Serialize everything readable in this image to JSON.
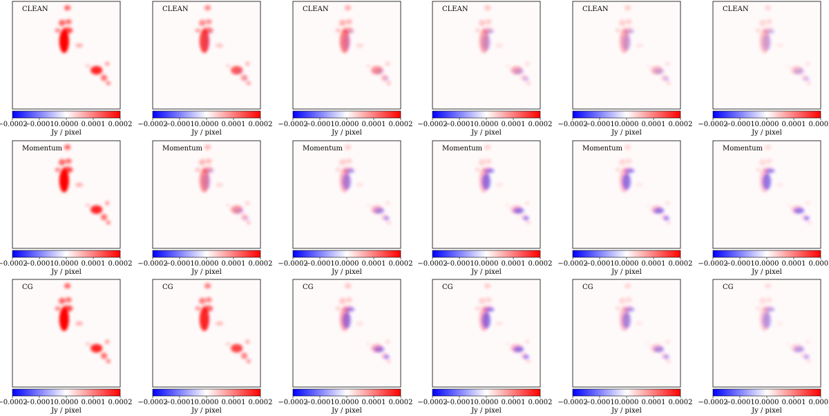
{
  "figure": {
    "colormap": {
      "low": "#0000ff",
      "mid": "#ffffff",
      "high": "#ff0000"
    },
    "colorbar": {
      "ticks": [
        "−0.0002",
        "−0.0001",
        "0.0000",
        "0.0001",
        "0.0002"
      ],
      "label": "Jy / pixel",
      "range": [
        -0.0002,
        0.0002
      ]
    },
    "rows": [
      {
        "method": "CLEAN"
      },
      {
        "method": "Momentum"
      },
      {
        "method": "CG"
      }
    ],
    "columns": 6
  },
  "chart_data": {
    "type": "heatmap",
    "layout": "3 rows x 6 columns of image panels",
    "row_labels": [
      "CLEAN",
      "Momentum",
      "CG"
    ],
    "value_range": [
      -0.0002,
      0.0002
    ],
    "colorbar_label": "Jy / pixel",
    "colorbar_ticks": [
      -0.0002,
      -0.0001,
      0.0,
      0.0001,
      0.0002
    ],
    "grid": false,
    "panel_intensity": [
      [
        1.0,
        0.75,
        0.5,
        0.35,
        0.3,
        0.25
      ],
      [
        1.0,
        0.45,
        0.3,
        0.28,
        0.25,
        0.22
      ],
      [
        1.0,
        0.85,
        0.35,
        0.3,
        0.25,
        0.2
      ]
    ],
    "panel_negative_fraction": [
      [
        0.0,
        0.05,
        0.12,
        0.2,
        0.2,
        0.2
      ],
      [
        0.0,
        0.15,
        0.35,
        0.45,
        0.45,
        0.45
      ],
      [
        0.0,
        0.02,
        0.4,
        0.45,
        0.35,
        0.3
      ]
    ]
  }
}
